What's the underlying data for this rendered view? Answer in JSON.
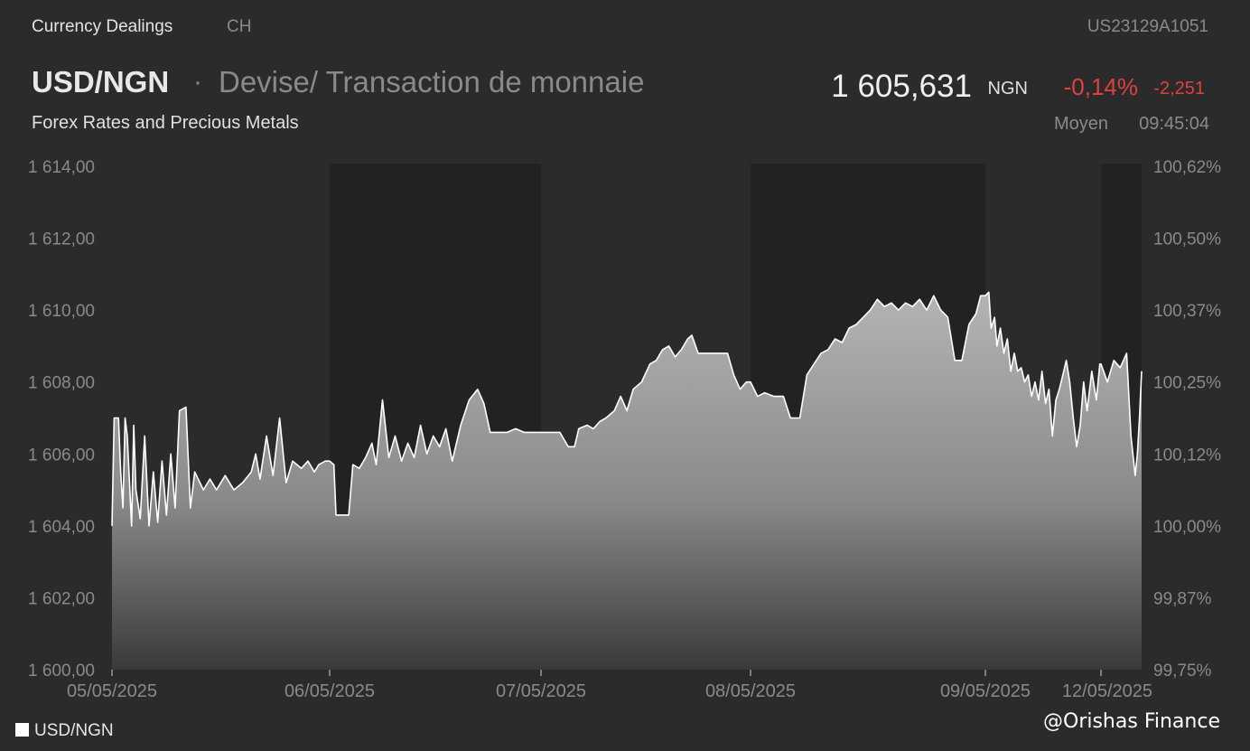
{
  "header": {
    "source": "Currency Dealings",
    "country": "CH",
    "isin": "US23129A1051",
    "pair": "USD/NGN",
    "separator": "·",
    "description": "Devise/ Transaction de monnaie",
    "category": "Forex Rates and Precious Metals",
    "price": "1 605,631",
    "currency": "NGN",
    "change_pct": "-0,14%",
    "change_abs": "-2,251",
    "price_type": "Moyen",
    "time": "09:45:04"
  },
  "legend": {
    "label": "USD/NGN"
  },
  "watermark": "@Orishas Finance",
  "colors": {
    "background": "#2b2b2b",
    "alt_band": "#222222",
    "line": "#ffffff",
    "negative": "#e04040",
    "axis_text": "#8a8a8a"
  },
  "chart_data": {
    "type": "area",
    "title": "",
    "xlabel": "",
    "ylabel": "",
    "ylim": [
      1600,
      1614
    ],
    "yticks": [
      "1 614,00",
      "1 612,00",
      "1 610,00",
      "1 608,00",
      "1 606,00",
      "1 604,00",
      "1 602,00",
      "1 600,00"
    ],
    "ytick_values": [
      1614,
      1612,
      1610,
      1608,
      1606,
      1604,
      1602,
      1600
    ],
    "y2ticks": [
      "100,62%",
      "100,50%",
      "100,37%",
      "100,25%",
      "100,12%",
      "100,00%",
      "99,87%",
      "99,75%"
    ],
    "xticks": [
      "05/05/2025",
      "06/05/2025",
      "07/05/2025",
      "08/05/2025",
      "09/05/2025",
      "12/05/2025"
    ],
    "session_starts": [
      0,
      1,
      2,
      3,
      4,
      5
    ],
    "session_end": 5.19,
    "grid": false,
    "legend_position": "bottom-left",
    "series": [
      {
        "name": "USD/NGN",
        "points": [
          [
            0.0,
            1604.0
          ],
          [
            0.01,
            1607.0
          ],
          [
            0.03,
            1607.0
          ],
          [
            0.04,
            1605.5
          ],
          [
            0.05,
            1604.5
          ],
          [
            0.06,
            1607.0
          ],
          [
            0.07,
            1606.5
          ],
          [
            0.09,
            1604.0
          ],
          [
            0.1,
            1606.8
          ],
          [
            0.11,
            1605.0
          ],
          [
            0.13,
            1604.2
          ],
          [
            0.15,
            1606.5
          ],
          [
            0.17,
            1604.0
          ],
          [
            0.19,
            1605.5
          ],
          [
            0.21,
            1604.1
          ],
          [
            0.23,
            1605.8
          ],
          [
            0.25,
            1604.3
          ],
          [
            0.27,
            1606.0
          ],
          [
            0.29,
            1604.5
          ],
          [
            0.31,
            1607.2
          ],
          [
            0.34,
            1607.3
          ],
          [
            0.36,
            1604.5
          ],
          [
            0.38,
            1605.5
          ],
          [
            0.42,
            1605.0
          ],
          [
            0.45,
            1605.3
          ],
          [
            0.48,
            1605.0
          ],
          [
            0.52,
            1605.4
          ],
          [
            0.56,
            1605.0
          ],
          [
            0.6,
            1605.2
          ],
          [
            0.64,
            1605.5
          ],
          [
            0.66,
            1606.0
          ],
          [
            0.68,
            1605.3
          ],
          [
            0.71,
            1606.5
          ],
          [
            0.74,
            1605.4
          ],
          [
            0.77,
            1607.0
          ],
          [
            0.8,
            1605.2
          ],
          [
            0.83,
            1605.8
          ],
          [
            0.87,
            1605.6
          ],
          [
            0.9,
            1605.8
          ],
          [
            0.93,
            1605.5
          ],
          [
            0.95,
            1605.7
          ],
          [
            0.98,
            1605.8
          ],
          [
            1.0,
            1605.8
          ],
          [
            1.02,
            1605.7
          ],
          [
            1.03,
            1604.3
          ],
          [
            1.06,
            1604.3
          ],
          [
            1.09,
            1604.3
          ],
          [
            1.11,
            1605.7
          ],
          [
            1.14,
            1605.6
          ],
          [
            1.17,
            1605.9
          ],
          [
            1.2,
            1606.3
          ],
          [
            1.22,
            1605.7
          ],
          [
            1.25,
            1607.5
          ],
          [
            1.28,
            1605.9
          ],
          [
            1.31,
            1606.5
          ],
          [
            1.34,
            1605.8
          ],
          [
            1.37,
            1606.3
          ],
          [
            1.4,
            1605.9
          ],
          [
            1.43,
            1606.8
          ],
          [
            1.46,
            1606.0
          ],
          [
            1.49,
            1606.5
          ],
          [
            1.52,
            1606.2
          ],
          [
            1.55,
            1606.7
          ],
          [
            1.58,
            1605.8
          ],
          [
            1.62,
            1606.8
          ],
          [
            1.66,
            1607.5
          ],
          [
            1.7,
            1607.8
          ],
          [
            1.73,
            1607.4
          ],
          [
            1.76,
            1606.6
          ],
          [
            1.8,
            1606.6
          ],
          [
            1.84,
            1606.6
          ],
          [
            1.88,
            1606.7
          ],
          [
            1.92,
            1606.6
          ],
          [
            1.96,
            1606.6
          ],
          [
            2.0,
            1606.6
          ],
          [
            2.04,
            1606.6
          ],
          [
            2.09,
            1606.6
          ],
          [
            2.13,
            1606.2
          ],
          [
            2.16,
            1606.2
          ],
          [
            2.18,
            1606.7
          ],
          [
            2.22,
            1606.8
          ],
          [
            2.25,
            1606.7
          ],
          [
            2.28,
            1606.9
          ],
          [
            2.31,
            1607.0
          ],
          [
            2.35,
            1607.2
          ],
          [
            2.38,
            1607.6
          ],
          [
            2.41,
            1607.2
          ],
          [
            2.44,
            1607.8
          ],
          [
            2.48,
            1608.0
          ],
          [
            2.52,
            1608.5
          ],
          [
            2.55,
            1608.6
          ],
          [
            2.58,
            1608.9
          ],
          [
            2.61,
            1609.0
          ],
          [
            2.64,
            1608.7
          ],
          [
            2.67,
            1608.9
          ],
          [
            2.7,
            1609.2
          ],
          [
            2.72,
            1609.3
          ],
          [
            2.75,
            1608.8
          ],
          [
            2.8,
            1608.8
          ],
          [
            2.85,
            1608.8
          ],
          [
            2.89,
            1608.8
          ],
          [
            2.92,
            1608.2
          ],
          [
            2.95,
            1607.8
          ],
          [
            2.98,
            1608.0
          ],
          [
            3.0,
            1608.0
          ],
          [
            3.03,
            1607.6
          ],
          [
            3.06,
            1607.7
          ],
          [
            3.1,
            1607.6
          ],
          [
            3.14,
            1607.6
          ],
          [
            3.17,
            1607.0
          ],
          [
            3.21,
            1607.0
          ],
          [
            3.24,
            1608.2
          ],
          [
            3.27,
            1608.5
          ],
          [
            3.3,
            1608.8
          ],
          [
            3.33,
            1608.9
          ],
          [
            3.36,
            1609.2
          ],
          [
            3.39,
            1609.1
          ],
          [
            3.42,
            1609.5
          ],
          [
            3.45,
            1609.6
          ],
          [
            3.48,
            1609.8
          ],
          [
            3.51,
            1610.0
          ],
          [
            3.54,
            1610.3
          ],
          [
            3.57,
            1610.1
          ],
          [
            3.6,
            1610.2
          ],
          [
            3.63,
            1610.0
          ],
          [
            3.66,
            1610.2
          ],
          [
            3.69,
            1610.1
          ],
          [
            3.72,
            1610.3
          ],
          [
            3.75,
            1610.0
          ],
          [
            3.78,
            1610.4
          ],
          [
            3.81,
            1610.0
          ],
          [
            3.84,
            1609.8
          ],
          [
            3.87,
            1608.6
          ],
          [
            3.9,
            1608.6
          ],
          [
            3.93,
            1609.6
          ],
          [
            3.96,
            1609.9
          ],
          [
            3.98,
            1610.4
          ],
          [
            4.0,
            1610.4
          ],
          [
            4.03,
            1610.5
          ],
          [
            4.05,
            1609.5
          ],
          [
            4.08,
            1609.8
          ],
          [
            4.1,
            1609.0
          ],
          [
            4.13,
            1609.5
          ],
          [
            4.16,
            1608.8
          ],
          [
            4.19,
            1609.2
          ],
          [
            4.22,
            1608.3
          ],
          [
            4.25,
            1608.8
          ],
          [
            4.28,
            1608.3
          ],
          [
            4.31,
            1608.4
          ],
          [
            4.34,
            1608.0
          ],
          [
            4.37,
            1608.2
          ],
          [
            4.4,
            1607.6
          ],
          [
            4.43,
            1608.0
          ],
          [
            4.46,
            1607.5
          ],
          [
            4.49,
            1608.3
          ],
          [
            4.52,
            1607.4
          ],
          [
            4.55,
            1607.8
          ],
          [
            4.58,
            1606.5
          ],
          [
            4.61,
            1607.5
          ],
          [
            4.64,
            1607.8
          ],
          [
            4.67,
            1608.2
          ],
          [
            4.7,
            1608.6
          ],
          [
            4.73,
            1608.0
          ],
          [
            4.76,
            1607.0
          ],
          [
            4.79,
            1606.2
          ],
          [
            4.82,
            1606.8
          ],
          [
            4.85,
            1608.0
          ],
          [
            4.88,
            1607.2
          ],
          [
            4.92,
            1608.3
          ],
          [
            4.96,
            1607.5
          ],
          [
            4.99,
            1608.5
          ],
          [
            5.0,
            1608.5
          ],
          [
            5.03,
            1608.0
          ],
          [
            5.06,
            1608.6
          ],
          [
            5.09,
            1608.4
          ],
          [
            5.12,
            1608.8
          ],
          [
            5.14,
            1606.5
          ],
          [
            5.16,
            1605.4
          ],
          [
            5.17,
            1606.0
          ],
          [
            5.18,
            1607.0
          ],
          [
            5.19,
            1608.3
          ]
        ]
      }
    ]
  }
}
